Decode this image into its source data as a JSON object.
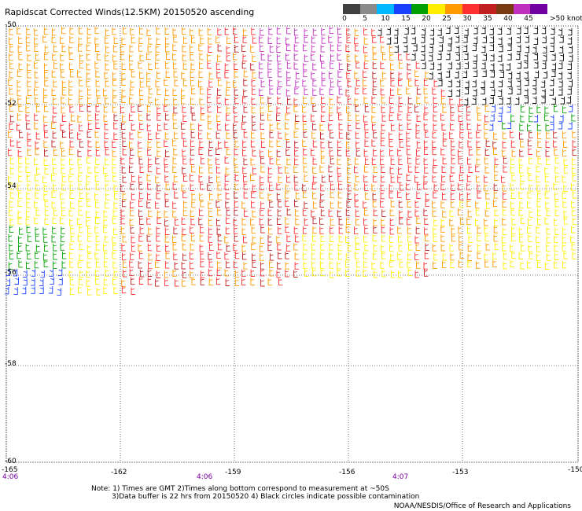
{
  "title": "Rapidscat Corrected Winds(12.5KM) 20150520 ascending",
  "colorbar": {
    "labels": [
      "0",
      "5",
      "10",
      "15",
      "20",
      "25",
      "30",
      "35",
      "40",
      "45"
    ],
    "unit_label": ">50 knots",
    "colors": [
      "#404040",
      "#8a8a8a",
      "#00b8ff",
      "#1a40ff",
      "#00a000",
      "#ffee00",
      "#ff9a00",
      "#ff3030",
      "#c02020",
      "#7a3a10",
      "#c030c0",
      "#7000a0"
    ]
  },
  "map": {
    "lat_labels": [
      "-50",
      "-52",
      "-54",
      "-56",
      "-58",
      "-60"
    ],
    "lon_labels": [
      "-165",
      "-162",
      "-159",
      "-156",
      "-153",
      "-150"
    ],
    "time_labels": [
      "4:06",
      "4:06",
      "4:07"
    ],
    "lat_range": [
      -60,
      -50
    ],
    "lon_range": [
      -165,
      -150
    ]
  },
  "notes": {
    "line1": "Note: 1) Times are GMT 2)Times along bottom correspond to measurement at ~50S",
    "line2": "3)Data buffer is 22 hrs from 20150520 4) Black circles indicate possible contamination"
  },
  "credit": "NOAA/NESDIS/Office of Research and Applications"
}
